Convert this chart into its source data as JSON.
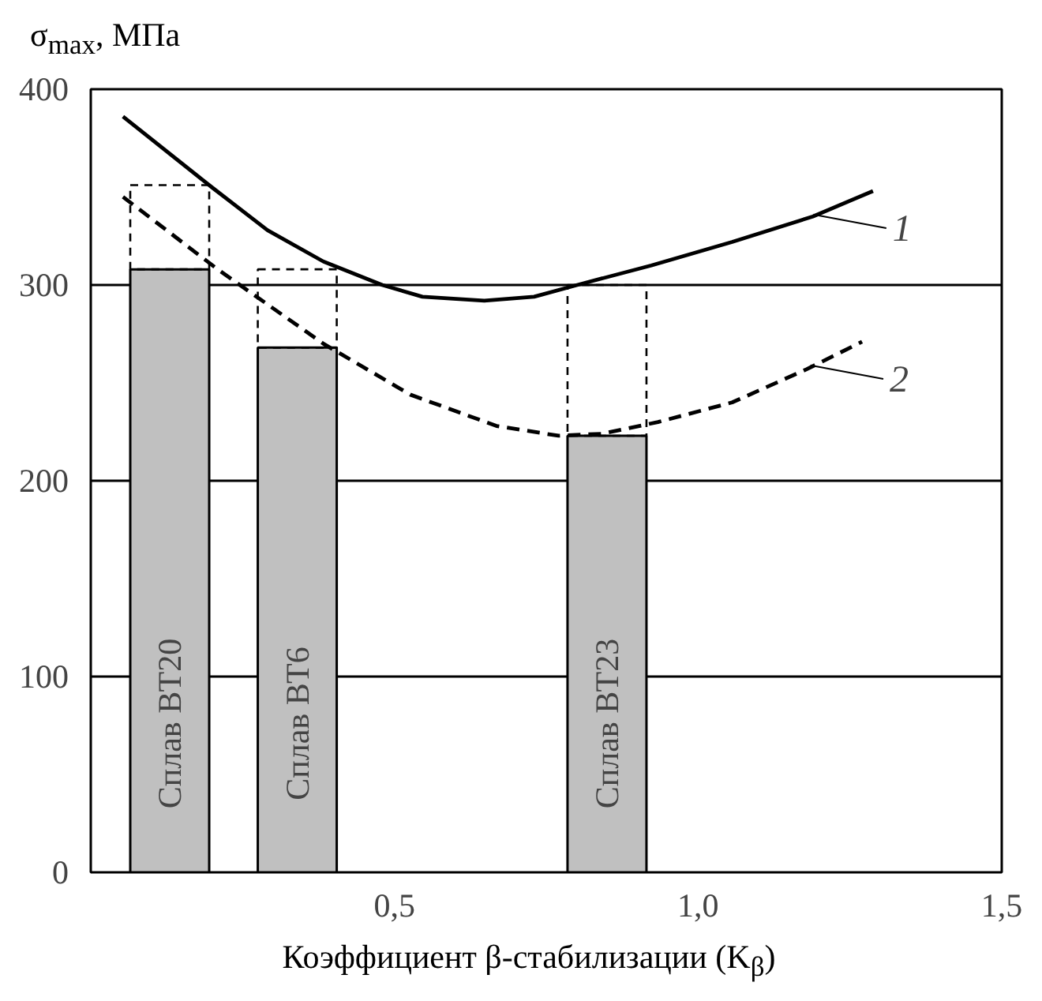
{
  "chart_data": {
    "type": "bar",
    "ylabel": "σ$_{max}$, МПа",
    "xlabel": "Коэффициент β-стабилизации (K$_{β}$)",
    "x": [
      0.13,
      0.34,
      0.85
    ],
    "stacked": true,
    "series": [
      {
        "color": "#c0c0c0",
        "values": [
          308,
          268,
          223
        ]
      },
      {
        "color": "#000000",
        "line_style": "dashed",
        "values": [
          43,
          40,
          77
        ]
      },
      {
        "type": "line",
        "color": "#000000",
        "line_style": "solid",
        "x": [
          0.053,
          0.199,
          0.291,
          0.383,
          0.48,
          0.546,
          0.648,
          0.73,
          0.801,
          0.923,
          1.056,
          1.189,
          1.288
        ],
        "values": [
          386,
          350,
          328,
          312,
          300,
          294,
          292,
          294,
          300,
          310,
          322,
          335,
          348
        ]
      },
      {
        "type": "line",
        "color": "#000000",
        "line_style": "dashed",
        "x": [
          0.053,
          0.209,
          0.383,
          0.526,
          0.668,
          0.77,
          0.842,
          0.934,
          1.056,
          1.179,
          1.27
        ],
        "values": [
          345,
          308,
          270,
          244,
          228,
          223,
          224,
          230,
          240,
          257,
          271
        ]
      }
    ],
    "xlim": [
      0,
      1.5
    ],
    "ylim": [
      0,
      400
    ],
    "xticks": [
      {
        "value": 0.5,
        "label": "0,5"
      },
      {
        "value": 1.0,
        "label": "1,0"
      },
      {
        "value": 1.5,
        "label": "1,5"
      }
    ],
    "yticks": [
      0,
      100,
      200,
      300,
      400
    ],
    "grid": "y",
    "annotations": [
      "Сплав ВТ20",
      "Сплав ВТ6",
      "Сплав ВТ23",
      {
        "text": "1",
        "x": 1.19,
        "y": 336
      },
      {
        "text": "2",
        "x": 1.185,
        "y": 259
      }
    ]
  }
}
